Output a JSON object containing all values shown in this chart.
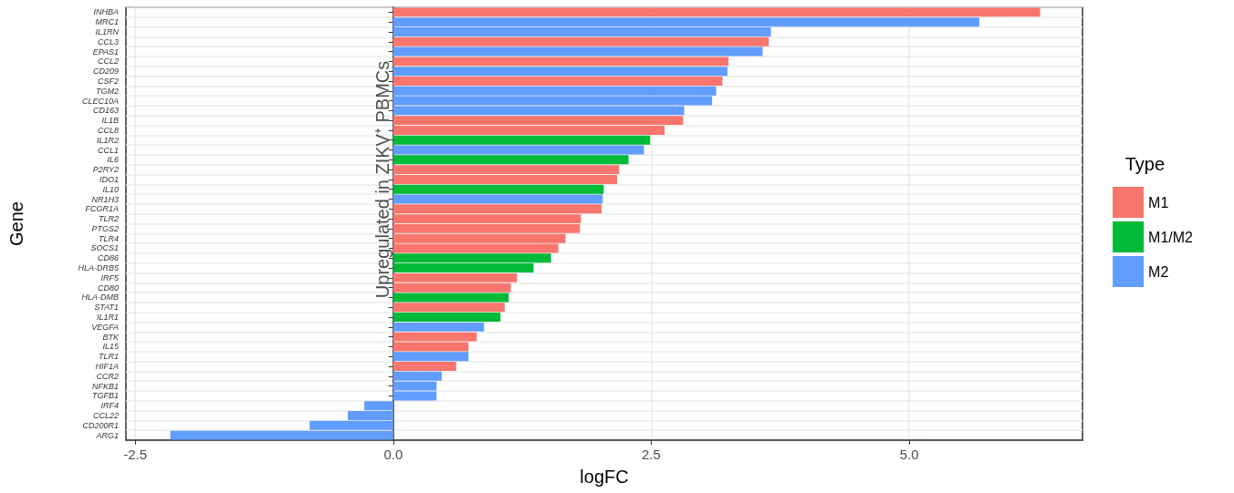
{
  "chart_data": {
    "type": "bar",
    "orientation": "horizontal",
    "xlabel": "logFC",
    "ylabel": "Gene",
    "legend_title": "Type",
    "categories": [
      "INHBA",
      "MRC1",
      "IL1RN",
      "CCL3",
      "EPAS1",
      "CCL2",
      "CD209",
      "CSF2",
      "TGM2",
      "CLEC10A",
      "CD163",
      "IL1B",
      "CCL8",
      "IL1R2",
      "CCL1",
      "IL6",
      "P2RY2",
      "IDO1",
      "IL10",
      "NR1H3",
      "FCGR1A",
      "TLR2",
      "PTGS2",
      "TLR4",
      "SOCS1",
      "CD86",
      "HLA-DRB5",
      "IRF5",
      "CD80",
      "HLA-DMB",
      "STAT1",
      "IL1R1",
      "VEGFA",
      "BTK",
      "IL15",
      "TLR1",
      "HIF1A",
      "CCR2",
      "NFKB1",
      "TGFB1",
      "IRF4",
      "CCL22",
      "CD200R1",
      "ARG1"
    ],
    "series": [
      {
        "name": "M1",
        "color": "#f8766d",
        "values": [
          6.27,
          null,
          null,
          3.64,
          null,
          3.25,
          null,
          3.19,
          null,
          null,
          null,
          2.81,
          2.63,
          null,
          null,
          null,
          2.19,
          2.17,
          null,
          null,
          2.02,
          1.82,
          1.81,
          1.67,
          1.6,
          null,
          null,
          1.2,
          1.14,
          null,
          1.08,
          null,
          null,
          0.81,
          0.73,
          null,
          0.61,
          null,
          null,
          null,
          null,
          null,
          null,
          null
        ]
      },
      {
        "name": "M1/M2",
        "color": "#00ba38",
        "values": [
          null,
          null,
          null,
          null,
          null,
          null,
          null,
          null,
          null,
          null,
          null,
          null,
          null,
          2.49,
          null,
          2.28,
          null,
          null,
          2.04,
          null,
          null,
          null,
          null,
          null,
          null,
          1.53,
          1.36,
          null,
          null,
          1.12,
          null,
          1.04,
          null,
          null,
          null,
          null,
          null,
          null,
          null,
          null,
          null,
          null,
          null,
          null
        ]
      },
      {
        "name": "M2",
        "color": "#619cff",
        "values": [
          null,
          5.68,
          3.66,
          null,
          3.58,
          null,
          3.24,
          null,
          3.13,
          3.09,
          2.82,
          null,
          null,
          null,
          2.43,
          null,
          null,
          null,
          null,
          2.03,
          null,
          null,
          null,
          null,
          null,
          null,
          null,
          null,
          null,
          null,
          null,
          null,
          0.88,
          null,
          null,
          0.73,
          null,
          0.47,
          0.42,
          0.42,
          -0.28,
          -0.44,
          -0.81,
          -2.16
        ]
      }
    ],
    "xlim": [
      -2.59,
      6.68
    ],
    "xticks": [
      {
        "value": -2.5,
        "label": "-2.5"
      },
      {
        "value": 0,
        "label": "0.0"
      },
      {
        "value": 2.5,
        "label": "2.5"
      },
      {
        "value": 5,
        "label": "5.0"
      }
    ],
    "grid": true,
    "legend": "right",
    "annotations": [
      "Upregulated in ZIKV⁺ PBMCs"
    ]
  }
}
